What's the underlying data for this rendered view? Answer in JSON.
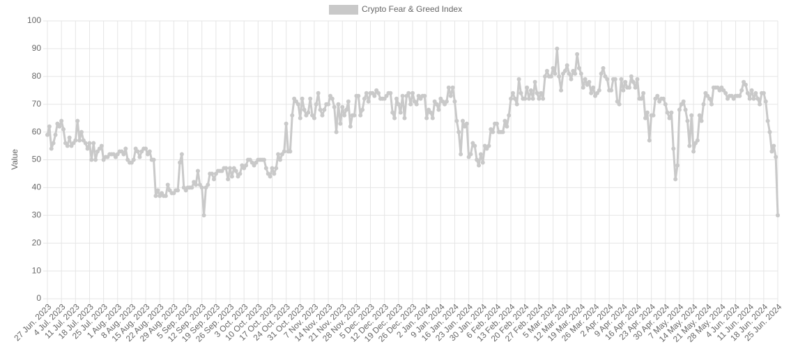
{
  "chart_data": {
    "type": "line",
    "y_label": "Value",
    "legend": "top",
    "grid": true,
    "ylim": [
      0,
      100
    ],
    "yticks": [
      0,
      10,
      20,
      30,
      40,
      50,
      60,
      70,
      80,
      90,
      100
    ],
    "categories": [
      "27 Jun. 2023",
      null,
      null,
      null,
      null,
      null,
      null,
      "4 Jul. 2023",
      null,
      null,
      null,
      null,
      null,
      null,
      "11 Jul. 2023",
      null,
      null,
      null,
      null,
      null,
      null,
      "18 Jul. 2023",
      null,
      null,
      null,
      null,
      null,
      null,
      "25 Jul. 2023",
      null,
      null,
      null,
      null,
      null,
      null,
      "1 Aug. 2023",
      null,
      null,
      null,
      null,
      null,
      null,
      "8 Aug. 2023",
      null,
      null,
      null,
      null,
      null,
      null,
      "15 Aug. 2023",
      null,
      null,
      null,
      null,
      null,
      null,
      "22 Aug. 2023",
      null,
      null,
      null,
      null,
      null,
      null,
      "29 Aug. 2023",
      null,
      null,
      null,
      null,
      null,
      null,
      "5 Sep. 2023",
      null,
      null,
      null,
      null,
      null,
      null,
      "12 Sep. 2023",
      null,
      null,
      null,
      null,
      null,
      null,
      "19 Sep. 2023",
      null,
      null,
      null,
      null,
      null,
      null,
      "26 Sep. 2023",
      null,
      null,
      null,
      null,
      null,
      null,
      "3 Oct. 2023",
      null,
      null,
      null,
      null,
      null,
      null,
      "10 Oct. 2023",
      null,
      null,
      null,
      null,
      null,
      null,
      "17 Oct. 2023",
      null,
      null,
      null,
      null,
      null,
      null,
      "24 Oct. 2023",
      null,
      null,
      null,
      null,
      null,
      null,
      "31 Oct. 2023",
      null,
      null,
      null,
      null,
      null,
      null,
      "7 Nov. 2023",
      null,
      null,
      null,
      null,
      null,
      null,
      "14 Nov. 2023",
      null,
      null,
      null,
      null,
      null,
      null,
      "21 Nov. 2023",
      null,
      null,
      null,
      null,
      null,
      null,
      "28 Nov. 2023",
      null,
      null,
      null,
      null,
      null,
      null,
      "5 Dec. 2023",
      null,
      null,
      null,
      null,
      null,
      null,
      "12 Dec. 2023",
      null,
      null,
      null,
      null,
      null,
      null,
      "19 Dec. 2023",
      null,
      null,
      null,
      null,
      null,
      null,
      "26 Dec. 2023",
      null,
      null,
      null,
      null,
      null,
      null,
      "2 Jan. 2024",
      null,
      null,
      null,
      null,
      null,
      null,
      "9 Jan. 2024",
      null,
      null,
      null,
      null,
      null,
      null,
      "16 Jan. 2024",
      null,
      null,
      null,
      null,
      null,
      null,
      "23 Jan. 2024",
      null,
      null,
      null,
      null,
      null,
      null,
      "30 Jan. 2024",
      null,
      null,
      null,
      null,
      null,
      null,
      "6 Feb. 2024",
      null,
      null,
      null,
      null,
      null,
      null,
      "13 Feb. 2024",
      null,
      null,
      null,
      null,
      null,
      null,
      "20 Feb. 2024",
      null,
      null,
      null,
      null,
      null,
      null,
      "27 Feb. 2024",
      null,
      null,
      null,
      null,
      null,
      null,
      "5 Mar. 2024",
      null,
      null,
      null,
      null,
      null,
      null,
      "12 Mar. 2024",
      null,
      null,
      null,
      null,
      null,
      null,
      "19 Mar. 2024",
      null,
      null,
      null,
      null,
      null,
      null,
      "26 Mar. 2024",
      null,
      null,
      null,
      null,
      null,
      null,
      "2 Apr. 2024",
      null,
      null,
      null,
      null,
      null,
      null,
      "9 Apr. 2024",
      null,
      null,
      null,
      null,
      null,
      null,
      "16 Apr. 2024",
      null,
      null,
      null,
      null,
      null,
      null,
      "23 Apr. 2024",
      null,
      null,
      null,
      null,
      null,
      null,
      "30 Apr. 2024",
      null,
      null,
      null,
      null,
      null,
      null,
      "7 May. 2024",
      null,
      null,
      null,
      null,
      null,
      null,
      "14 May. 2024",
      null,
      null,
      null,
      null,
      null,
      null,
      "21 May. 2024",
      null,
      null,
      null,
      null,
      null,
      null,
      "28 May. 2024",
      null,
      null,
      null,
      null,
      null,
      null,
      "4 Jun. 2024",
      null,
      null,
      null,
      null,
      null,
      null,
      "11 Jun. 2024",
      null,
      null,
      null,
      null,
      null,
      null,
      "18 Jun. 2024",
      null,
      null,
      null,
      null,
      null,
      null,
      "25 Jun. 2024"
    ],
    "series": [
      {
        "name": "Crypto Fear & Greed Index",
        "color": "#c9c9c9",
        "values": [
          59,
          62,
          54,
          56,
          59,
          63,
          62,
          64,
          61,
          56,
          55,
          58,
          55,
          56,
          57,
          64,
          57,
          60,
          57,
          56,
          54,
          56,
          50,
          56,
          50,
          53,
          54,
          55,
          50,
          51,
          51,
          52,
          52,
          52,
          51,
          52,
          53,
          53,
          52,
          54,
          50,
          49,
          49,
          50,
          54,
          53,
          51,
          53,
          54,
          54,
          52,
          53,
          50,
          50,
          37,
          39,
          37,
          38,
          37,
          37,
          41,
          39,
          38,
          38,
          39,
          39,
          49,
          52,
          40,
          39,
          40,
          40,
          40,
          42,
          41,
          46,
          41,
          40,
          30,
          40,
          41,
          45,
          45,
          43,
          45,
          46,
          46,
          46,
          47,
          47,
          43,
          47,
          44,
          47,
          46,
          44,
          45,
          48,
          47,
          48,
          50,
          50,
          49,
          48,
          49,
          50,
          50,
          50,
          50,
          47,
          45,
          44,
          47,
          45,
          47,
          52,
          50,
          52,
          53,
          63,
          53,
          53,
          66,
          72,
          71,
          70,
          65,
          72,
          68,
          66,
          67,
          72,
          66,
          65,
          70,
          74,
          68,
          66,
          68,
          70,
          70,
          73,
          72,
          69,
          60,
          70,
          63,
          69,
          66,
          68,
          71,
          62,
          66,
          66,
          73,
          73,
          66,
          68,
          72,
          74,
          71,
          74,
          74,
          73,
          75,
          74,
          72,
          72,
          72,
          73,
          74,
          74,
          67,
          65,
          72,
          70,
          67,
          73,
          65,
          73,
          74,
          70,
          74,
          71,
          70,
          73,
          72,
          73,
          73,
          65,
          68,
          67,
          65,
          71,
          70,
          68,
          72,
          71,
          70,
          71,
          76,
          73,
          76,
          71,
          64,
          60,
          52,
          64,
          62,
          63,
          51,
          52,
          56,
          55,
          50,
          48,
          52,
          49,
          55,
          54,
          55,
          61,
          60,
          63,
          63,
          60,
          60,
          60,
          64,
          62,
          66,
          72,
          74,
          72,
          70,
          79,
          74,
          72,
          72,
          76,
          72,
          75,
          72,
          78,
          74,
          72,
          74,
          72,
          80,
          82,
          80,
          80,
          83,
          81,
          90,
          80,
          75,
          81,
          82,
          84,
          81,
          79,
          82,
          81,
          88,
          83,
          81,
          76,
          79,
          77,
          78,
          74,
          76,
          73,
          74,
          75,
          81,
          83,
          80,
          79,
          75,
          75,
          79,
          79,
          71,
          70,
          79,
          75,
          78,
          76,
          76,
          80,
          78,
          76,
          79,
          72,
          72,
          74,
          65,
          67,
          57,
          66,
          66,
          72,
          73,
          71,
          72,
          72,
          70,
          67,
          65,
          67,
          54,
          43,
          48,
          68,
          70,
          71,
          68,
          64,
          55,
          66,
          53,
          56,
          57,
          66,
          64,
          70,
          74,
          73,
          72,
          70,
          76,
          76,
          76,
          75,
          76,
          75,
          74,
          72,
          73,
          73,
          72,
          73,
          73,
          73,
          75,
          78,
          77,
          74,
          72,
          75,
          72,
          74,
          72,
          70,
          74,
          74,
          71,
          64,
          60,
          53,
          55,
          51,
          30
        ]
      }
    ]
  }
}
